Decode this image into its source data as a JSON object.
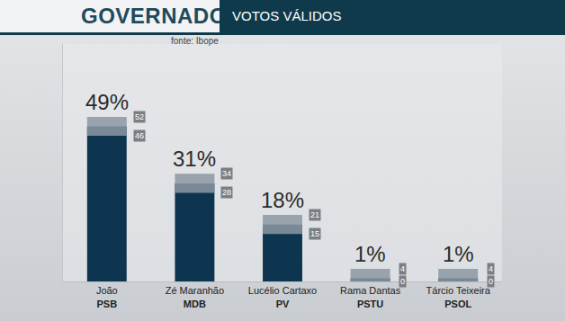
{
  "chart_data": {
    "type": "bar",
    "title": "GOVERNADOR",
    "subtitle": "VOTOS VÁLIDOS",
    "annotations": [
      "fonte: Ibope"
    ],
    "categories": [
      "João",
      "Zé Maranhão",
      "Lucélio Cartaxo",
      "Rama Dantas",
      "Tárcio Teixeira"
    ],
    "parties": [
      "PSB",
      "MDB",
      "PV",
      "PSTU",
      "PSOL"
    ],
    "values": [
      49,
      31,
      18,
      1,
      1
    ],
    "value_labels": [
      "49%",
      "31%",
      "18%",
      "1%",
      "1%"
    ],
    "upper": [
      52,
      34,
      21,
      4,
      4
    ],
    "lower": [
      46,
      28,
      15,
      0,
      0
    ],
    "color": "#0e3550",
    "ylim": [
      0,
      75
    ],
    "data_labels": true,
    "tick_labels": "x",
    "grid": false
  }
}
